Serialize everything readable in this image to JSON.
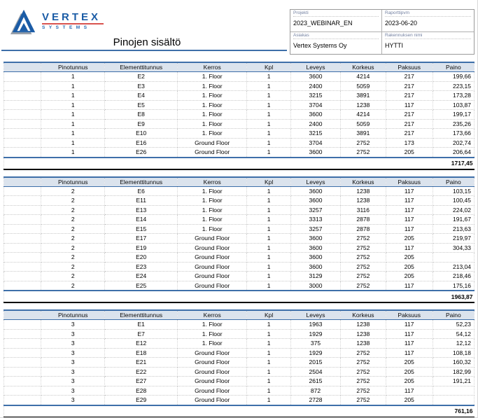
{
  "logo": {
    "brand": "VERTEX",
    "sub": "SYSTEMS"
  },
  "title": "Pinojen sisältö",
  "project_box": {
    "fields": [
      {
        "label": "Projekti",
        "value": "2023_WEBINAR_EN"
      },
      {
        "label": "Raporttipvm",
        "value": "2023-06-20"
      },
      {
        "label": "Asiakas",
        "value": "Vertex Systems Oy"
      },
      {
        "label": "Rakennuksen nimi",
        "value": "HYTTI"
      }
    ]
  },
  "columns": [
    "",
    "Pinotunnus",
    "Elementtitunnus",
    "Kerros",
    "Kpl",
    "Leveys",
    "Korkeus",
    "Paksuus",
    "Paino"
  ],
  "tables": [
    {
      "stack": "1",
      "rows": [
        [
          "1",
          "E2",
          "1. Floor",
          "1",
          "3600",
          "4214",
          "217",
          "199,66"
        ],
        [
          "1",
          "E3",
          "1. Floor",
          "1",
          "2400",
          "5059",
          "217",
          "223,15"
        ],
        [
          "1",
          "E4",
          "1. Floor",
          "1",
          "3215",
          "3891",
          "217",
          "173,28"
        ],
        [
          "1",
          "E5",
          "1. Floor",
          "1",
          "3704",
          "1238",
          "117",
          "103,87"
        ],
        [
          "1",
          "E8",
          "1. Floor",
          "1",
          "3600",
          "4214",
          "217",
          "199,17"
        ],
        [
          "1",
          "E9",
          "1. Floor",
          "1",
          "2400",
          "5059",
          "217",
          "235,26"
        ],
        [
          "1",
          "E10",
          "1. Floor",
          "1",
          "3215",
          "3891",
          "217",
          "173,66"
        ],
        [
          "1",
          "E16",
          "Ground Floor",
          "1",
          "3704",
          "2752",
          "173",
          "202,74"
        ],
        [
          "1",
          "E26",
          "Ground Floor",
          "1",
          "3600",
          "2752",
          "205",
          "206,64"
        ]
      ],
      "total": "1717,45"
    },
    {
      "stack": "2",
      "rows": [
        [
          "2",
          "E6",
          "1. Floor",
          "1",
          "3600",
          "1238",
          "117",
          "103,15"
        ],
        [
          "2",
          "E11",
          "1. Floor",
          "1",
          "3600",
          "1238",
          "117",
          "100,45"
        ],
        [
          "2",
          "E13",
          "1. Floor",
          "1",
          "3257",
          "3116",
          "117",
          "224,02"
        ],
        [
          "2",
          "E14",
          "1. Floor",
          "1",
          "3313",
          "2878",
          "117",
          "191,67"
        ],
        [
          "2",
          "E15",
          "1. Floor",
          "1",
          "3257",
          "2878",
          "117",
          "213,63"
        ],
        [
          "2",
          "E17",
          "Ground Floor",
          "1",
          "3600",
          "2752",
          "205",
          "219,97"
        ],
        [
          "2",
          "E19",
          "Ground Floor",
          "1",
          "3600",
          "2752",
          "117",
          "304,33"
        ],
        [
          "2",
          "E20",
          "Ground Floor",
          "1",
          "3600",
          "2752",
          "205",
          ""
        ],
        [
          "2",
          "E23",
          "Ground Floor",
          "1",
          "3600",
          "2752",
          "205",
          "213,04"
        ],
        [
          "2",
          "E24",
          "Ground Floor",
          "1",
          "3129",
          "2752",
          "205",
          "218,46"
        ],
        [
          "2",
          "E25",
          "Ground Floor",
          "1",
          "3000",
          "2752",
          "117",
          "175,16"
        ]
      ],
      "total": "1963,87"
    },
    {
      "stack": "3",
      "rows": [
        [
          "3",
          "E1",
          "1. Floor",
          "1",
          "1963",
          "1238",
          "117",
          "52,23"
        ],
        [
          "3",
          "E7",
          "1. Floor",
          "1",
          "1929",
          "1238",
          "117",
          "54,12"
        ],
        [
          "3",
          "E12",
          "1. Floor",
          "1",
          "375",
          "1238",
          "117",
          "12,12"
        ],
        [
          "3",
          "E18",
          "Ground Floor",
          "1",
          "1929",
          "2752",
          "117",
          "108,18"
        ],
        [
          "3",
          "E21",
          "Ground Floor",
          "1",
          "2015",
          "2752",
          "205",
          "160,32"
        ],
        [
          "3",
          "E22",
          "Ground Floor",
          "1",
          "2504",
          "2752",
          "205",
          "182,99"
        ],
        [
          "3",
          "E27",
          "Ground Floor",
          "1",
          "2615",
          "2752",
          "205",
          "191,21"
        ],
        [
          "3",
          "E28",
          "Ground Floor",
          "1",
          "872",
          "2752",
          "117",
          ""
        ],
        [
          "3",
          "E29",
          "Ground Floor",
          "1",
          "2728",
          "2752",
          "205",
          ""
        ]
      ],
      "total": "761,16"
    }
  ],
  "layout": {
    "col_widths": [
      "7.9%",
      "13.6%",
      "15.4%",
      "14.8%",
      "9.3%",
      "10.6%",
      "9.6%",
      "10.0%",
      "8.8%"
    ]
  },
  "colors": {
    "accent_blue": "#3e6fa9",
    "header_row_bg": "#dbe3ed",
    "logo_blue": "#1b5ca6",
    "logo_red": "#d9534f",
    "sum_line_black": "#000000"
  }
}
